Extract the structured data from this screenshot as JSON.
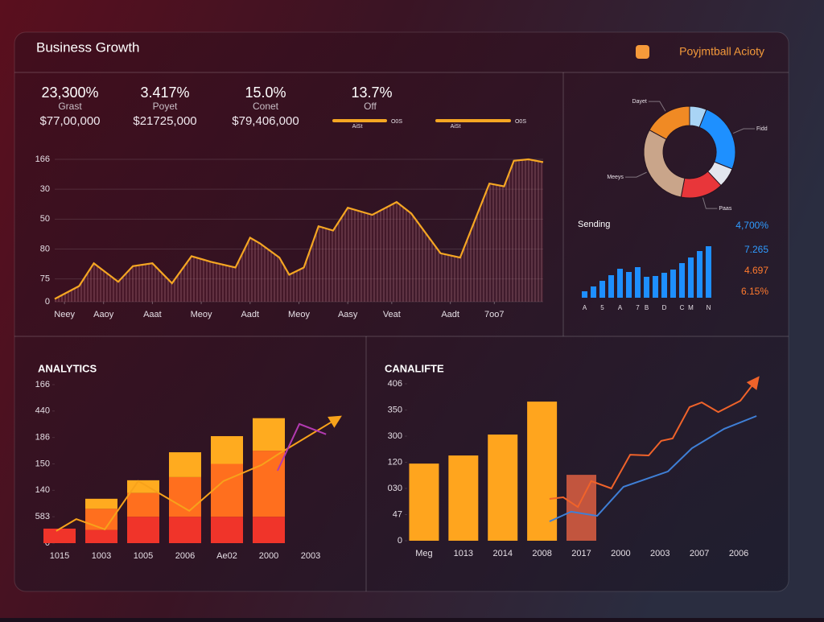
{
  "header": {
    "title": "Business Growth",
    "brand": "Poyjmtball Acioty"
  },
  "kpis": [
    {
      "value": "23,300%",
      "label": "Grast",
      "amount": "$77,00,000"
    },
    {
      "value": "3.417%",
      "label": "Poyet",
      "amount": "$21725,000"
    },
    {
      "value": "15.0%",
      "label": "Conet",
      "amount": "$79,406,000"
    },
    {
      "value": "13.7%",
      "label": "Off"
    }
  ],
  "progress": [
    {
      "left": "AiSt",
      "right": "O0S"
    },
    {
      "left": "AiSt",
      "right": "O0S"
    }
  ],
  "chart_data": [
    {
      "type": "line",
      "color": "#f5a623",
      "xlim": [
        0,
        100
      ],
      "ylim": [
        0,
        100
      ],
      "grid": true,
      "x": [
        0,
        5,
        8,
        13,
        16,
        20,
        24,
        28,
        32,
        37,
        40,
        42,
        46,
        48,
        51,
        54,
        57,
        60,
        65,
        70,
        73,
        79,
        83,
        89,
        92,
        94,
        97,
        100
      ],
      "values": [
        2,
        11,
        27,
        14,
        25,
        27,
        13,
        32,
        28,
        24,
        45,
        41,
        31,
        19,
        24,
        53,
        50,
        66,
        61,
        70,
        62,
        34,
        31,
        83,
        81,
        99,
        100,
        98
      ],
      "yticks": [
        0,
        {
          "value": 16,
          "label": "75"
        },
        {
          "value": 37,
          "label": "80"
        },
        {
          "value": 58,
          "label": "50"
        },
        {
          "value": 79,
          "label": "30"
        },
        {
          "value": 100,
          "label": "166"
        }
      ],
      "xticks": [
        {
          "value": 2,
          "label": "Neey"
        },
        {
          "value": 10,
          "label": "Aaoy"
        },
        {
          "value": 20,
          "label": "Aaat"
        },
        {
          "value": 30,
          "label": "Meoy"
        },
        {
          "value": 40,
          "label": "Aadt"
        },
        {
          "value": 50,
          "label": "Meoy"
        },
        {
          "value": 60,
          "label": "Aasy"
        },
        {
          "value": 69,
          "label": "Veat"
        },
        {
          "value": 81,
          "label": "Aadt"
        },
        {
          "value": 90,
          "label": "7oo7"
        }
      ]
    },
    {
      "type": "pie",
      "categories": [
        null,
        "Fidd",
        null,
        "Paas",
        "Meeys",
        "Dayet"
      ],
      "values": [
        6,
        25,
        7,
        15,
        30,
        17
      ],
      "colors": [
        "#a9d4f5",
        "#1e90ff",
        "#e3e6ee",
        "#e8363a",
        "#c9a58a",
        "#f08a24"
      ]
    },
    {
      "type": "bar",
      "title": "Sending",
      "color": "#1e8fff",
      "categories": [
        "A",
        null,
        "5",
        null,
        "A",
        null,
        "7",
        "B",
        null,
        "D",
        null,
        "C",
        "M",
        null,
        "N"
      ],
      "values": [
        8,
        14,
        21,
        28,
        36,
        32,
        38,
        26,
        27,
        31,
        35,
        43,
        50,
        58,
        64
      ],
      "annotations": [
        {
          "text": "4,700%",
          "color": "#2f9bff"
        },
        {
          "text": "7.265",
          "color": "#2f9bff"
        },
        {
          "text": "4.697",
          "color": "#ff7a2e"
        },
        {
          "text": "6.15%",
          "color": "#ff7a2e"
        }
      ]
    },
    {
      "type": "stacked",
      "title": "ANALYTICS",
      "ylim": [
        0,
        6
      ],
      "yticks": [
        0,
        {
          "value": 1,
          "label": "583"
        },
        {
          "value": 2,
          "label": "140"
        },
        {
          "value": 3,
          "label": "150"
        },
        {
          "value": 4,
          "label": "186"
        },
        {
          "value": 5,
          "label": "440"
        },
        {
          "value": 6,
          "label": "166"
        }
      ],
      "categories": [
        "1015",
        "1003",
        "1005",
        "2006",
        "Ae02",
        "2000",
        "2003"
      ],
      "series": [
        {
          "color": "#f0342a",
          "values": [
            0.55,
            0.5,
            1.0,
            1.0,
            1.0,
            1.0,
            null
          ]
        },
        {
          "color": "#ff6f1e",
          "values": [
            null,
            0.8,
            0.9,
            1.5,
            2.0,
            2.5,
            null
          ]
        },
        {
          "color": "#ffab1f",
          "values": [
            null,
            0.38,
            0.48,
            0.94,
            1.05,
            1.23,
            null
          ]
        }
      ],
      "lines": [
        {
          "color": "#f7a21b",
          "x": [
            -0.08,
            0.4,
            1.08,
            1.88,
            3.1,
            3.92,
            4.83,
            5.21,
            6.65
          ],
          "values": [
            0.46,
            0.91,
            0.52,
            2.35,
            1.22,
            2.35,
            2.96,
            3.35,
            4.73
          ]
        },
        {
          "color": "#b23ab0",
          "x": [
            5.21,
            5.73,
            6.37
          ],
          "values": [
            2.74,
            4.51,
            4.12
          ]
        }
      ]
    },
    {
      "type": "combo",
      "title": "CANALIFTE",
      "ylim": [
        0,
        6
      ],
      "yticks": [
        0,
        {
          "value": 1,
          "label": "47"
        },
        {
          "value": 2,
          "label": "030"
        },
        {
          "value": 3,
          "label": "120"
        },
        {
          "value": 4,
          "label": "300"
        },
        {
          "value": 5,
          "label": "350"
        },
        {
          "value": 6,
          "label": "406"
        }
      ],
      "categories": [
        "Meg",
        "1013",
        "2014",
        "2008",
        "2017",
        "2000",
        "2003",
        "2007",
        "2006"
      ],
      "series": [
        {
          "color": "#ffa51e",
          "values": [
            2.95,
            3.26,
            4.06,
            5.32,
            null,
            null,
            null,
            null,
            null
          ]
        },
        {
          "color": "#c2553e",
          "values": [
            null,
            null,
            null,
            null,
            2.52,
            null,
            null,
            null,
            null
          ]
        }
      ],
      "lines": [
        {
          "color": "#f0632a",
          "x": [
            3.19,
            3.54,
            3.91,
            4.25,
            4.76,
            5.24,
            5.71,
            6.03,
            6.32,
            6.75,
            7.06,
            7.48,
            8.04,
            8.45
          ],
          "values": [
            1.6,
            1.66,
            1.29,
            2.28,
            2.0,
            3.29,
            3.26,
            3.82,
            3.91,
            5.11,
            5.29,
            4.92,
            5.35,
            6.15
          ]
        },
        {
          "color": "#3f7fd6",
          "x": [
            3.19,
            3.74,
            4.4,
            5.07,
            6.2,
            6.81,
            7.63,
            8.45
          ],
          "values": [
            0.74,
            1.11,
            0.95,
            2.06,
            2.65,
            3.54,
            4.28,
            4.77
          ]
        }
      ]
    }
  ]
}
